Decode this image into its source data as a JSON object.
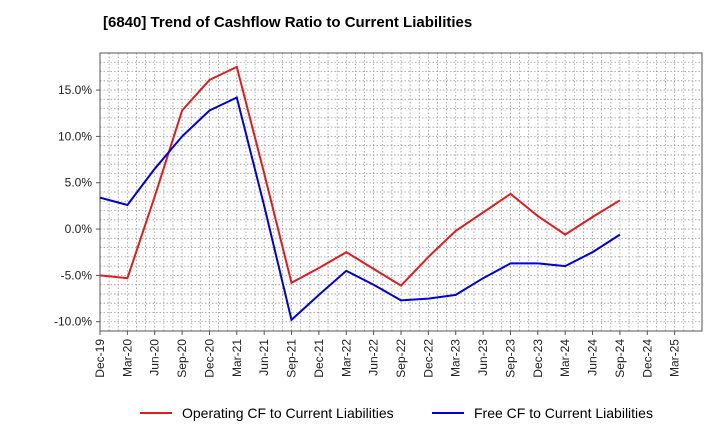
{
  "chart_data": {
    "type": "line",
    "title": "[6840]  Trend of Cashflow Ratio to Current Liabilities",
    "xlabel": "",
    "ylabel": "",
    "categories": [
      "Dec-19",
      "Mar-20",
      "Jun-20",
      "Sep-20",
      "Dec-20",
      "Mar-21",
      "Jun-21",
      "Sep-21",
      "Dec-21",
      "Mar-22",
      "Jun-22",
      "Sep-22",
      "Dec-22",
      "Mar-23",
      "Jun-23",
      "Sep-23",
      "Dec-23",
      "Mar-24",
      "Jun-24",
      "Sep-24",
      "Dec-24",
      "Mar-25"
    ],
    "ylim": [
      -11,
      19
    ],
    "yticks": [
      -10,
      -5,
      0,
      5,
      10,
      15
    ],
    "ytick_labels": [
      "-10.0%",
      "-5.0%",
      "0.0%",
      "5.0%",
      "10.0%",
      "15.0%"
    ],
    "grid": true,
    "legend_position": "bottom",
    "series": [
      {
        "name": "Operating CF to Current Liabilities",
        "color": "#e41a1c",
        "values": [
          -5.0,
          -5.3,
          3.5,
          12.8,
          16.1,
          17.5,
          6.0,
          -5.8,
          -4.2,
          -2.5,
          -4.3,
          -6.1,
          -3.0,
          -0.2,
          1.8,
          3.8,
          1.4,
          -0.6,
          1.3,
          3.1,
          null,
          null
        ]
      },
      {
        "name": "Free CF to Current Liabilities",
        "color": "#0000dd",
        "values": [
          3.4,
          2.6,
          6.5,
          10.0,
          12.8,
          14.2,
          2.5,
          -9.8,
          -7.1,
          -4.5,
          -6.0,
          -7.7,
          -7.5,
          -7.1,
          -5.3,
          -3.7,
          -3.7,
          -4.0,
          -2.5,
          -0.6,
          null,
          null
        ]
      }
    ]
  }
}
